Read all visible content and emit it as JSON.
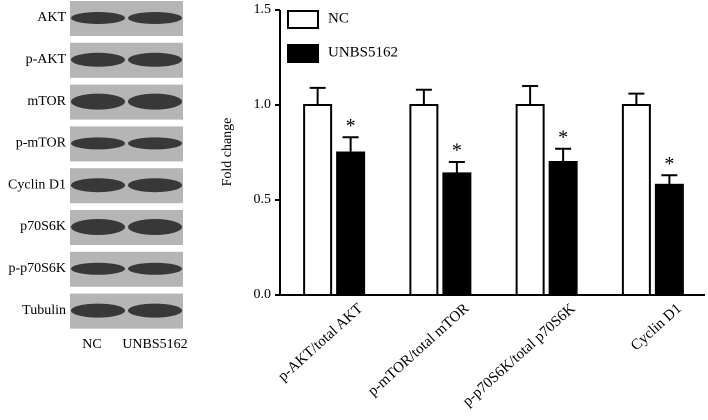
{
  "blot": {
    "rows": [
      "AKT",
      "p-AKT",
      "mTOR",
      "p-mTOR",
      "Cyclin D1",
      "p70S6K",
      "p-p70S6K",
      "Tubulin"
    ],
    "lanes": [
      "NC",
      "UNBS5162"
    ]
  },
  "chart_data": {
    "type": "bar",
    "y_label": "Fold change",
    "categories": [
      "p-AKT/total AKT",
      "p-mTOR/total mTOR",
      "p-p70S6K/total p70S6K",
      "Cyclin D1"
    ],
    "series": [
      {
        "name": "NC",
        "color": "#ffffff",
        "values": [
          1.0,
          1.0,
          1.0,
          1.0
        ],
        "errors": [
          0.09,
          0.08,
          0.1,
          0.06
        ]
      },
      {
        "name": "UNBS5162",
        "color": "#000000",
        "values": [
          0.75,
          0.64,
          0.7,
          0.58
        ],
        "errors": [
          0.08,
          0.06,
          0.07,
          0.05
        ],
        "annotations": [
          "*",
          "*",
          "*",
          "*"
        ]
      }
    ],
    "ylim": [
      0,
      1.5
    ],
    "yticks": [
      {
        "value": 0,
        "label": "0.0"
      },
      0.5,
      {
        "value": 1,
        "label": "1.0"
      },
      1.5
    ],
    "legend": "upper left"
  }
}
